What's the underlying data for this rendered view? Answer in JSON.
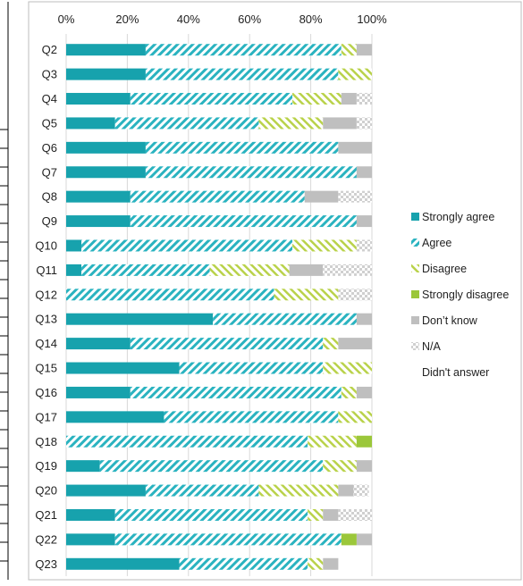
{
  "chart_data": {
    "type": "bar",
    "orientation": "horizontal",
    "stacked": true,
    "percent_stacked": true,
    "x_axis_position": "top",
    "xlim": [
      0,
      100
    ],
    "x_ticks": [
      "0%",
      "20%",
      "40%",
      "60%",
      "80%",
      "100%"
    ],
    "grid": true,
    "legend_position": "right",
    "categories": [
      "Q2",
      "Q3",
      "Q4",
      "Q5",
      "Q6",
      "Q7",
      "Q8",
      "Q9",
      "Q10",
      "Q11",
      "Q12",
      "Q13",
      "Q14",
      "Q15",
      "Q16",
      "Q17",
      "Q18",
      "Q19",
      "Q20",
      "Q21",
      "Q22",
      "Q23"
    ],
    "series": [
      {
        "name": "Strongly agree",
        "color": "#17a2ad",
        "pattern": "solid",
        "values": [
          26,
          26,
          21,
          16,
          26,
          26,
          21,
          21,
          5,
          5,
          0,
          48,
          21,
          37,
          21,
          32,
          0,
          11,
          26,
          16,
          16,
          37
        ]
      },
      {
        "name": "Agree",
        "color": "#2ab3c0",
        "pattern": "diagonal-hatch",
        "values": [
          64,
          63,
          53,
          47,
          63,
          69,
          57,
          74,
          69,
          42,
          68,
          47,
          63,
          47,
          69,
          57,
          79,
          73,
          37,
          63,
          74,
          42
        ]
      },
      {
        "name": "Disagree",
        "color": "#b9d24a",
        "pattern": "reverse-hatch",
        "values": [
          5,
          11,
          16,
          21,
          0,
          0,
          0,
          0,
          21,
          26,
          21,
          0,
          5,
          16,
          5,
          11,
          16,
          11,
          26,
          5,
          0,
          5
        ]
      },
      {
        "name": "Strongly disagree",
        "color": "#9bc73a",
        "pattern": "solid",
        "values": [
          0,
          0,
          0,
          0,
          0,
          0,
          0,
          0,
          0,
          0,
          0,
          0,
          0,
          0,
          0,
          0,
          5,
          0,
          0,
          0,
          5,
          0
        ]
      },
      {
        "name": "Don’t know",
        "color": "#bfbfbf",
        "pattern": "solid",
        "values": [
          5,
          0,
          5,
          11,
          11,
          5,
          11,
          5,
          0,
          11,
          0,
          5,
          11,
          0,
          5,
          0,
          0,
          5,
          5,
          5,
          5,
          5
        ]
      },
      {
        "name": "N/A",
        "color": "#d9d9d9",
        "pattern": "checker",
        "values": [
          0,
          0,
          5,
          5,
          0,
          0,
          11,
          0,
          5,
          16,
          11,
          0,
          0,
          0,
          0,
          0,
          0,
          0,
          5,
          11,
          0,
          0
        ]
      },
      {
        "name": "Didn't answer",
        "color": "#ffffff",
        "pattern": "none",
        "values": [
          0,
          0,
          0,
          0,
          0,
          0,
          0,
          0,
          0,
          0,
          0,
          0,
          0,
          0,
          0,
          0,
          0,
          0,
          0,
          0,
          0,
          11
        ]
      }
    ]
  }
}
